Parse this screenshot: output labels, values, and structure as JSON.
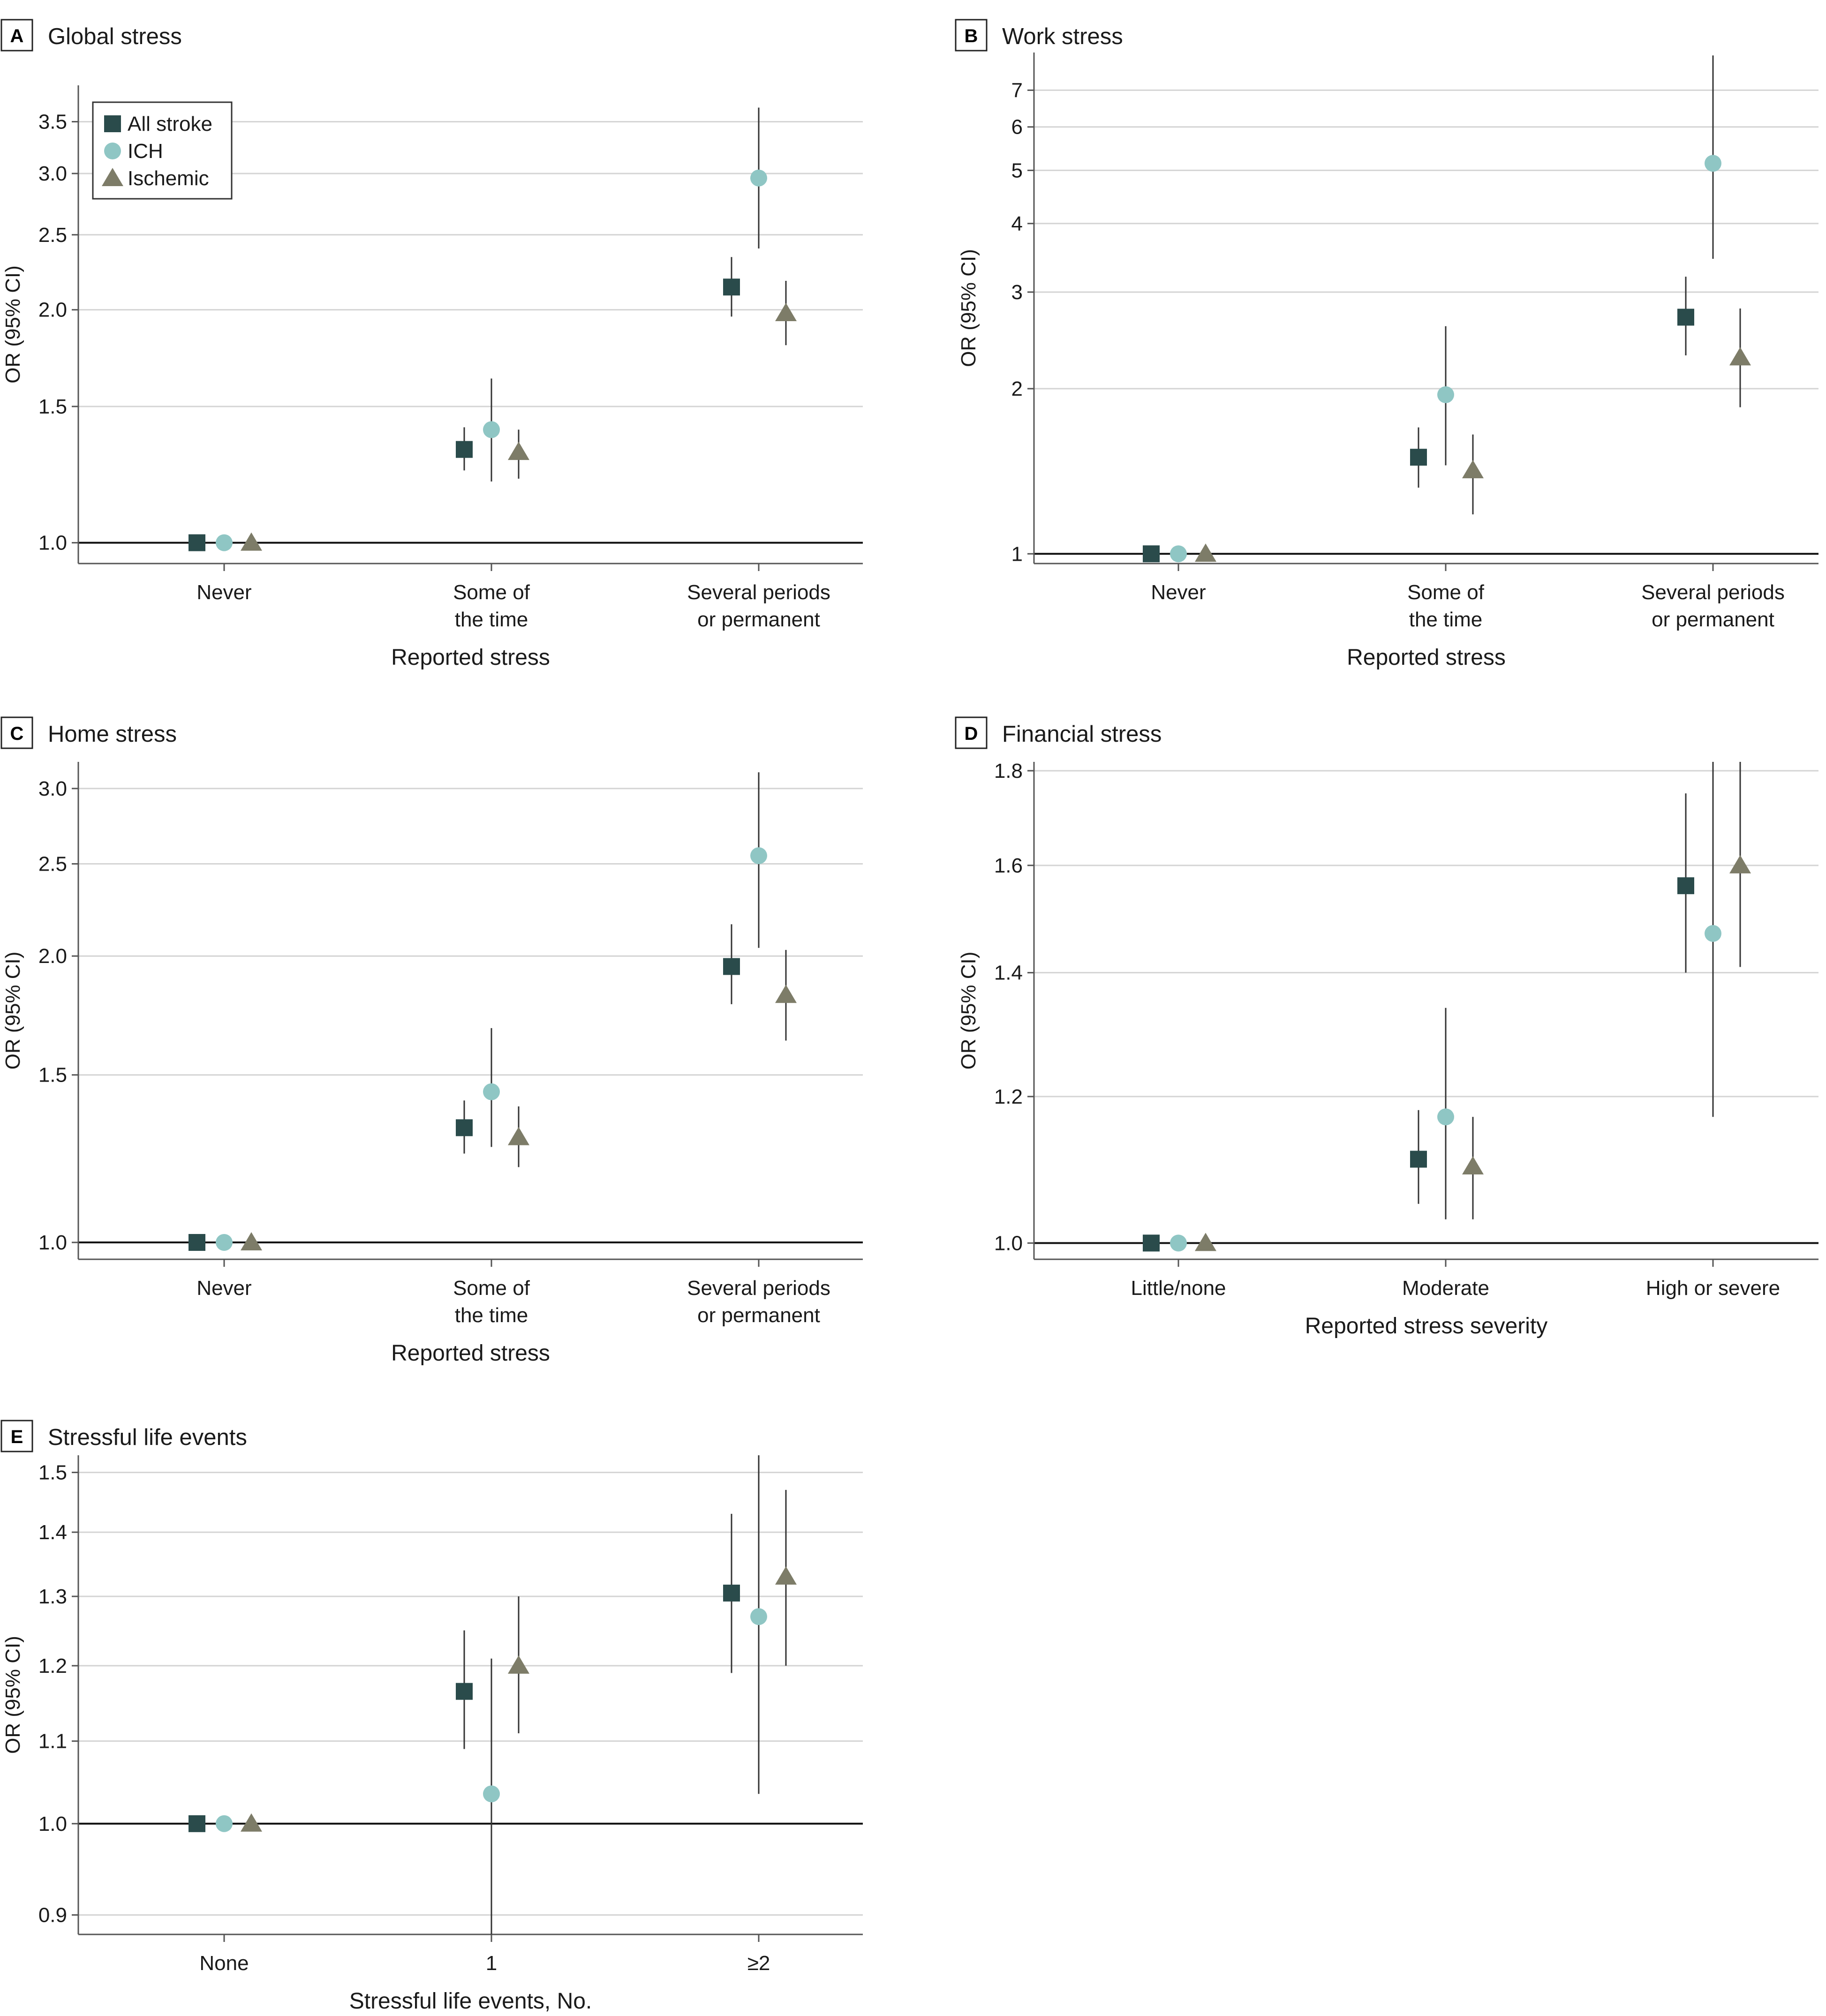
{
  "colors": {
    "all_stroke": "#2a4b4b",
    "ich": "#8fc6c4",
    "ischemic": "#7d7c68",
    "grid": "#d4d4d4",
    "axis": "#555555"
  },
  "legend": [
    {
      "label": "All stroke",
      "marker": "square"
    },
    {
      "label": "ICH",
      "marker": "circle"
    },
    {
      "label": "Ischemic",
      "marker": "triangle"
    }
  ],
  "chart_data": [
    {
      "type": "scatter",
      "letter": "A",
      "title": "Global stress",
      "ylabel": "OR (95% CI)",
      "xlabel": "Reported stress",
      "yscale": "log",
      "ylim": [
        0.94,
        3.9
      ],
      "yticks": [
        1.0,
        1.5,
        2.0,
        2.5,
        3.0,
        3.5
      ],
      "ytick_labels": [
        "1.0",
        "1.5",
        "2.0",
        "2.5",
        "3.0",
        "3.5"
      ],
      "categories": [
        [
          "Never"
        ],
        [
          "Some of",
          "the time"
        ],
        [
          "Several periods",
          "or permanent"
        ]
      ],
      "series": [
        {
          "name": "All stroke",
          "values": [
            1.0,
            1.32,
            2.14
          ],
          "ci_low": [
            null,
            1.24,
            1.96
          ],
          "ci_high": [
            null,
            1.41,
            2.34
          ]
        },
        {
          "name": "ICH",
          "values": [
            1.0,
            1.4,
            2.96
          ],
          "ci_low": [
            null,
            1.2,
            2.4
          ],
          "ci_high": [
            null,
            1.63,
            3.65
          ]
        },
        {
          "name": "Ischemic",
          "values": [
            1.0,
            1.31,
            1.98
          ],
          "ci_low": [
            null,
            1.21,
            1.8
          ],
          "ci_high": [
            null,
            1.4,
            2.18
          ]
        }
      ]
    },
    {
      "type": "scatter",
      "letter": "B",
      "title": "Work stress",
      "ylabel": "OR (95% CI)",
      "xlabel": "Reported stress",
      "yscale": "log",
      "ylim": [
        0.96,
        8.2
      ],
      "yticks": [
        1,
        2,
        3,
        4,
        5,
        6,
        7
      ],
      "ytick_labels": [
        "1",
        "2",
        "3",
        "4",
        "5",
        "6",
        "7"
      ],
      "categories": [
        [
          "Never"
        ],
        [
          "Some of",
          "the time"
        ],
        [
          "Several periods",
          "or permanent"
        ]
      ],
      "series": [
        {
          "name": "All stroke",
          "values": [
            1.0,
            1.5,
            2.7
          ],
          "ci_low": [
            null,
            1.32,
            2.3
          ],
          "ci_high": [
            null,
            1.7,
            3.2
          ]
        },
        {
          "name": "ICH",
          "values": [
            1.0,
            1.95,
            5.15
          ],
          "ci_low": [
            null,
            1.45,
            3.45
          ],
          "ci_high": [
            null,
            2.6,
            8.1
          ]
        },
        {
          "name": "Ischemic",
          "values": [
            1.0,
            1.42,
            2.28
          ],
          "ci_low": [
            null,
            1.18,
            1.85
          ],
          "ci_high": [
            null,
            1.65,
            2.8
          ]
        }
      ]
    },
    {
      "type": "scatter",
      "letter": "C",
      "title": "Home stress",
      "ylabel": "OR (95% CI)",
      "xlabel": "Reported stress",
      "yscale": "log",
      "ylim": [
        0.96,
        3.2
      ],
      "yticks": [
        1.0,
        1.5,
        2.0,
        2.5,
        3.0
      ],
      "ytick_labels": [
        "1.0",
        "1.5",
        "2.0",
        "2.5",
        "3.0"
      ],
      "categories": [
        [
          "Never"
        ],
        [
          "Some of",
          "the time"
        ],
        [
          "Several periods",
          "or permanent"
        ]
      ],
      "series": [
        {
          "name": "All stroke",
          "values": [
            1.0,
            1.32,
            1.95
          ],
          "ci_low": [
            null,
            1.24,
            1.78
          ],
          "ci_high": [
            null,
            1.41,
            2.16
          ]
        },
        {
          "name": "ICH",
          "values": [
            1.0,
            1.44,
            2.55
          ],
          "ci_low": [
            null,
            1.26,
            2.04
          ],
          "ci_high": [
            null,
            1.68,
            3.12
          ]
        },
        {
          "name": "Ischemic",
          "values": [
            1.0,
            1.29,
            1.82
          ],
          "ci_low": [
            null,
            1.2,
            1.63
          ],
          "ci_high": [
            null,
            1.39,
            2.03
          ]
        }
      ]
    },
    {
      "type": "scatter",
      "letter": "D",
      "title": "Financial stress",
      "ylabel": "OR (95% CI)",
      "xlabel": "Reported stress severity",
      "yscale": "log",
      "ylim": [
        0.98,
        1.82
      ],
      "yticks": [
        1.0,
        1.2,
        1.4,
        1.6,
        1.8
      ],
      "ytick_labels": [
        "1.0",
        "1.2",
        "1.4",
        "1.6",
        "1.8"
      ],
      "categories": [
        [
          "Little/none"
        ],
        [
          "Moderate"
        ],
        [
          "High or severe"
        ]
      ],
      "series": [
        {
          "name": "All stroke",
          "values": [
            1.0,
            1.11,
            1.56
          ],
          "ci_low": [
            null,
            1.05,
            1.4
          ],
          "ci_high": [
            null,
            1.18,
            1.75
          ]
        },
        {
          "name": "ICH",
          "values": [
            1.0,
            1.17,
            1.47
          ],
          "ci_low": [
            null,
            1.03,
            1.17
          ],
          "ci_high": [
            null,
            1.34,
            1.83
          ]
        },
        {
          "name": "Ischemic",
          "values": [
            1.0,
            1.1,
            1.6
          ],
          "ci_low": [
            null,
            1.03,
            1.41
          ],
          "ci_high": [
            null,
            1.17,
            1.82
          ]
        }
      ]
    },
    {
      "type": "scatter",
      "letter": "E",
      "title": "Stressful life events",
      "ylabel": "OR (95% CI)",
      "xlabel": "Stressful life events, No.",
      "yscale": "log",
      "ylim": [
        0.88,
        1.53
      ],
      "yticks": [
        0.9,
        1.0,
        1.1,
        1.2,
        1.3,
        1.4,
        1.5
      ],
      "ytick_labels": [
        "0.9",
        "1.0",
        "1.1",
        "1.2",
        "1.3",
        "1.4",
        "1.5"
      ],
      "categories": [
        [
          "None"
        ],
        [
          "1"
        ],
        [
          "≥2"
        ]
      ],
      "series": [
        {
          "name": "All stroke",
          "values": [
            1.0,
            1.165,
            1.305
          ],
          "ci_low": [
            null,
            1.09,
            1.19
          ],
          "ci_high": [
            null,
            1.25,
            1.43
          ]
        },
        {
          "name": "ICH",
          "values": [
            1.0,
            1.035,
            1.27
          ],
          "ci_low": [
            null,
            0.88,
            1.035
          ],
          "ci_high": [
            null,
            1.21,
            1.55
          ]
        },
        {
          "name": "Ischemic",
          "values": [
            1.0,
            1.2,
            1.33
          ],
          "ci_low": [
            null,
            1.11,
            1.2
          ],
          "ci_high": [
            null,
            1.3,
            1.47
          ]
        }
      ]
    }
  ]
}
